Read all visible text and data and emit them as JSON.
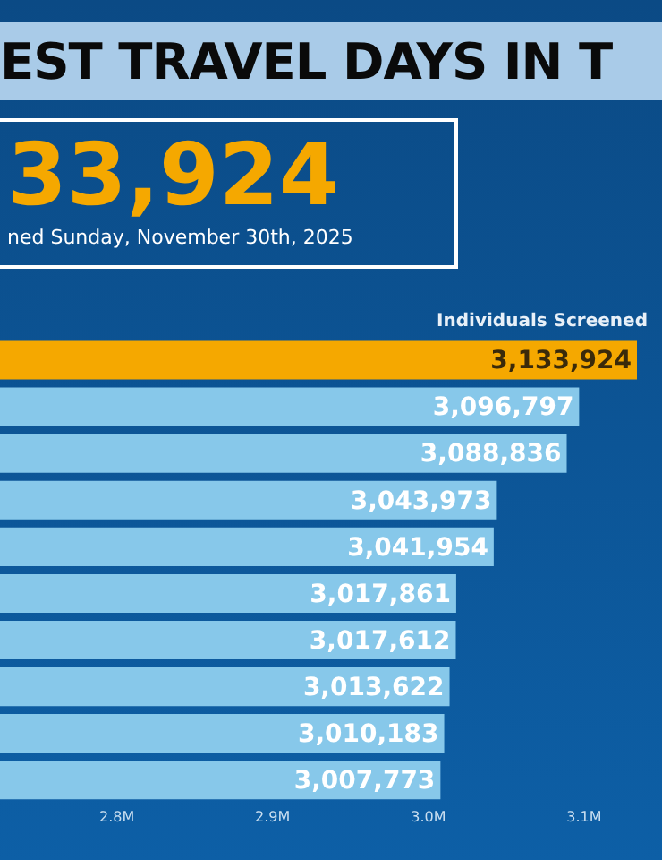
{
  "chart_data": {
    "type": "bar",
    "orientation": "horizontal",
    "title": "EST TRAVEL DAYS IN T",
    "annotations": [
      "33,924",
      "ned Sunday, November 30th, 2025",
      "Individuals Screened"
    ],
    "categories": [
      null,
      null,
      null,
      null,
      null,
      null,
      null,
      null,
      null,
      null
    ],
    "values": [
      3133924,
      3096797,
      3088836,
      3043973,
      3041954,
      3017861,
      3017612,
      3013622,
      3010183,
      3007773
    ],
    "colors": [
      "#f5a800",
      "#87c8ea",
      "#87c8ea",
      "#87c8ea",
      "#87c8ea",
      "#87c8ea",
      "#87c8ea",
      "#87c8ea",
      "#87c8ea",
      "#87c8ea"
    ],
    "xlim": [
      2725000,
      3150000
    ],
    "xticks": [
      {
        "value": 2800000,
        "label": "2.8M"
      },
      {
        "value": 2900000,
        "label": "2.9M"
      },
      {
        "value": 3000000,
        "label": "3.0M"
      },
      {
        "value": 3100000,
        "label": "3.1M"
      }
    ],
    "value_labels": [
      "3,133,924",
      "3,096,797",
      "3,088,836",
      "3,043,973",
      "3,041,954",
      "3,017,861",
      "3,017,612",
      "3,013,622",
      "3,010,183",
      "3,007,773"
    ],
    "grid": false,
    "legend": false
  }
}
